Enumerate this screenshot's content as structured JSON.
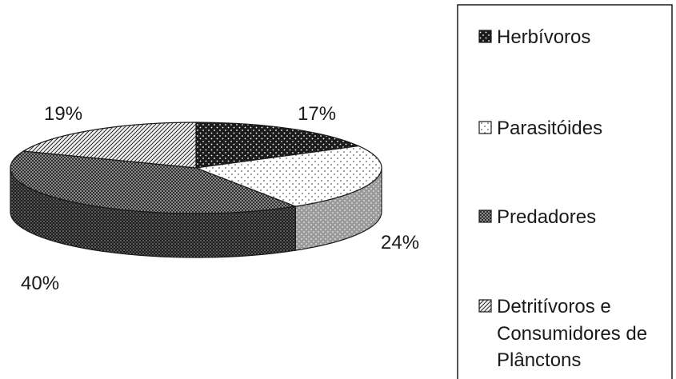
{
  "chart_data": {
    "type": "pie",
    "three_d": true,
    "title": "",
    "legend_position": "right",
    "slices": [
      {
        "label": "Herbívoros",
        "label_lines": [
          "Herbívoros"
        ],
        "value": 17,
        "value_label": "17%",
        "pattern": "dark-dots"
      },
      {
        "label": "Parasitóides",
        "label_lines": [
          "Parasitóides"
        ],
        "value": 24,
        "value_label": "24%",
        "pattern": "light-dots"
      },
      {
        "label": "Predadores",
        "label_lines": [
          "Predadores"
        ],
        "value": 40,
        "value_label": "40%",
        "pattern": "checker"
      },
      {
        "label": "Detritívoros e Consumidores de Plânctons",
        "label_lines": [
          "Detritívoros e",
          "Consumidores de",
          "Plânctons"
        ],
        "value": 19,
        "value_label": "19%",
        "pattern": "diagonal"
      }
    ]
  }
}
